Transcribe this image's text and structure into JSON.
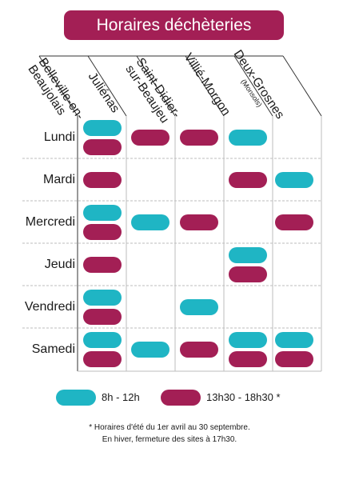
{
  "title": "Horaires déchèteries",
  "sites": [
    {
      "name": "Belleville-en-\nBeaujolais",
      "sub": ""
    },
    {
      "name": "Juliénas",
      "sub": ""
    },
    {
      "name": "Saint-Didier-\nsur-Beaujeu",
      "sub": ""
    },
    {
      "name": "Villié-Morgon",
      "sub": ""
    },
    {
      "name": "Deux-Grosnes",
      "sub": "(Monsols)"
    }
  ],
  "days": [
    {
      "label": "Lundi",
      "slots": [
        [
          "morning",
          "afternoon"
        ],
        [
          "afternoon"
        ],
        [
          "afternoon"
        ],
        [
          "morning"
        ],
        []
      ]
    },
    {
      "label": "Mardi",
      "slots": [
        [
          "afternoon"
        ],
        [],
        [],
        [
          "afternoon"
        ],
        [
          "morning"
        ]
      ]
    },
    {
      "label": "Mercredi",
      "slots": [
        [
          "morning",
          "afternoon"
        ],
        [
          "morning"
        ],
        [
          "afternoon"
        ],
        [],
        [
          "afternoon"
        ]
      ]
    },
    {
      "label": "Jeudi",
      "slots": [
        [
          "afternoon"
        ],
        [],
        [],
        [
          "morning",
          "afternoon"
        ],
        []
      ]
    },
    {
      "label": "Vendredi",
      "slots": [
        [
          "morning",
          "afternoon"
        ],
        [],
        [
          "morning"
        ],
        [],
        []
      ]
    },
    {
      "label": "Samedi",
      "slots": [
        [
          "morning",
          "afternoon"
        ],
        [
          "morning"
        ],
        [
          "afternoon"
        ],
        [
          "morning",
          "afternoon"
        ],
        [
          "morning",
          "afternoon"
        ]
      ]
    }
  ],
  "legend": {
    "morning_label": "8h - 12h",
    "afternoon_label": "13h30 - 18h30 *"
  },
  "footnote": {
    "line1": "* Horaires d'été du 1er avril au 30 septembre.",
    "line2": "En hiver, fermeture des sites à 17h30."
  },
  "colors": {
    "morning": "#1fb5c4",
    "afternoon": "#a31f55",
    "grid": "#bdbdbd",
    "grid_dark": "#333333"
  }
}
